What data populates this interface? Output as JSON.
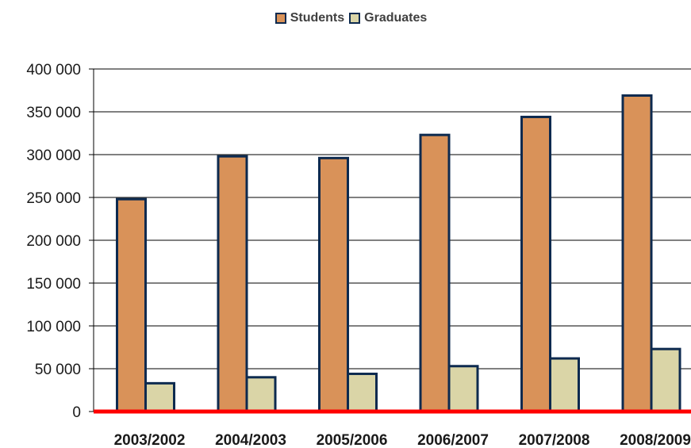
{
  "chart_data": {
    "type": "bar",
    "title": "",
    "xlabel": "",
    "ylabel": "",
    "categories": [
      "2003/2002",
      "2004/2003",
      "2005/2006",
      "2006/2007",
      "2007/2008",
      "2008/2009"
    ],
    "series": [
      {
        "name": "Students",
        "color": "#d99259",
        "values": [
          248000,
          298000,
          296000,
          323000,
          344000,
          369000
        ]
      },
      {
        "name": "Graduates",
        "color": "#dad5a7",
        "values": [
          33000,
          40000,
          44000,
          53000,
          62000,
          73000
        ]
      }
    ],
    "ylim": [
      0,
      400000
    ],
    "yticks": [
      0,
      50000,
      100000,
      150000,
      200000,
      250000,
      300000,
      350000,
      400000
    ],
    "ytick_labels": [
      "0",
      "50 000",
      "100 000",
      "150 000",
      "200 000",
      "250 000",
      "300 000",
      "350 000",
      "400 000"
    ],
    "grid": true,
    "legend_position": "top-center",
    "bar_outline_color": "#0d2a4f",
    "baseline_color": "#ff0000"
  }
}
